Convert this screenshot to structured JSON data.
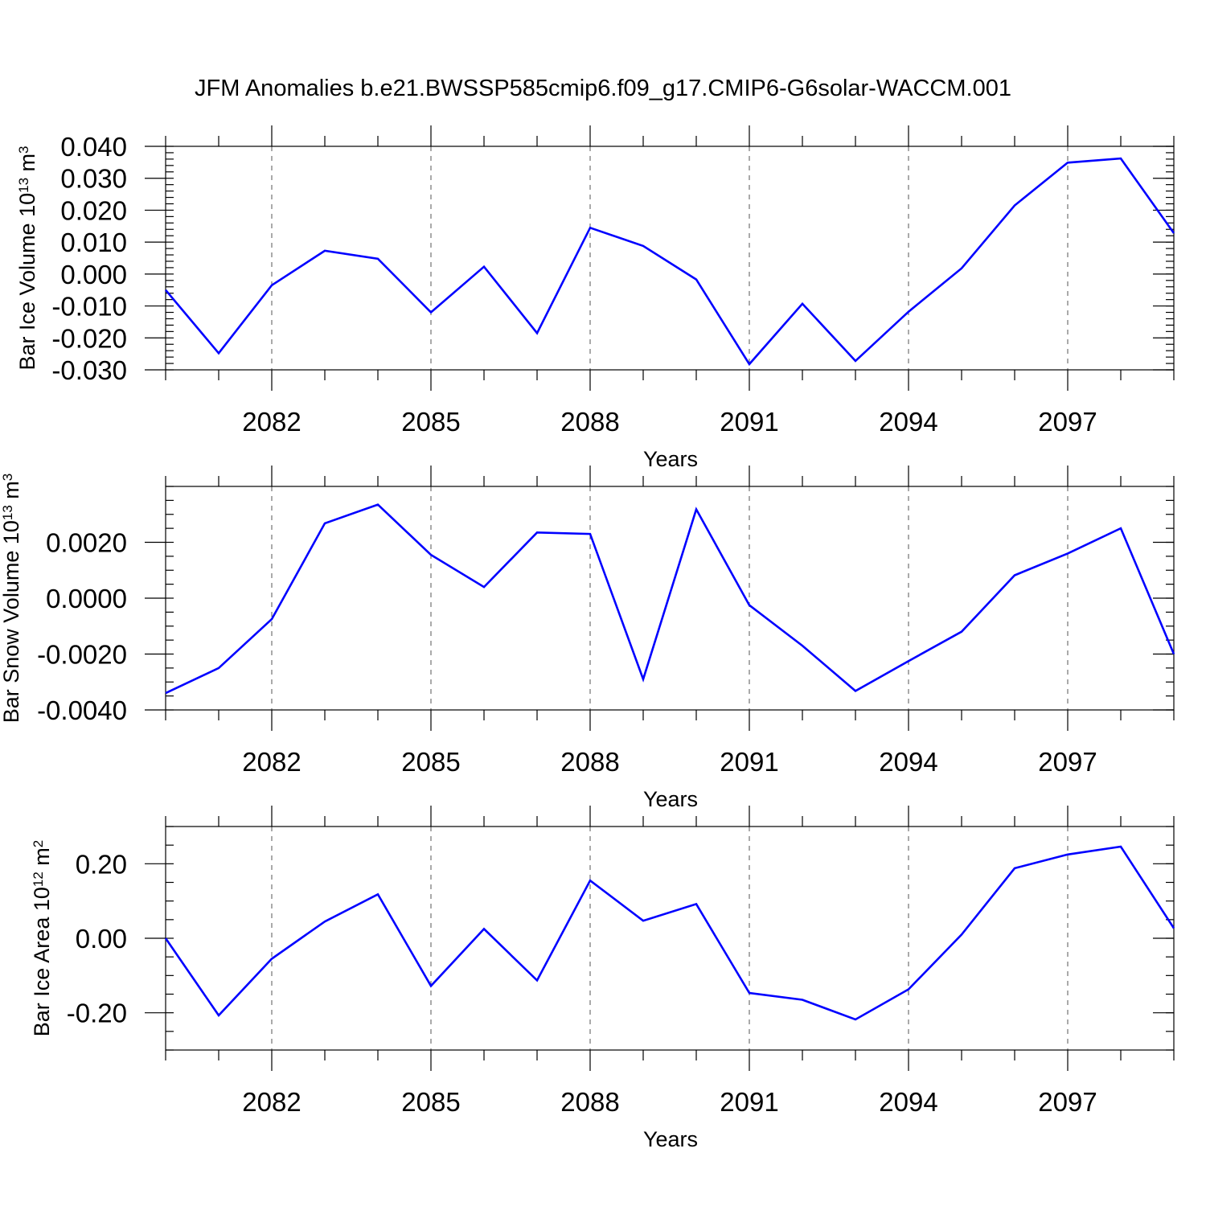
{
  "figure": {
    "title": "JFM Anomalies b.e21.BWSSP585cmip6.f09_g17.CMIP6-G6solar-WACCM.001",
    "line_color": "#0000ff"
  },
  "chart_data": [
    {
      "type": "line",
      "xlabel": "Years",
      "ylabel": {
        "prefix": "Bar Ice Volume 10",
        "exp": "13",
        "unit": " m",
        "unit_exp": "3"
      },
      "xlim": [
        2080,
        2099
      ],
      "ylim": [
        -0.03,
        0.04
      ],
      "xticks": [
        2082,
        2085,
        2088,
        2091,
        2094,
        2097
      ],
      "xtick_labels": [
        "2082",
        "2085",
        "2088",
        "2091",
        "2094",
        "2097"
      ],
      "yticks": [
        0.04,
        0.03,
        0.02,
        0.01,
        0.0,
        -0.01,
        -0.02,
        -0.03
      ],
      "ytick_labels": [
        "0.040",
        "0.030",
        "0.020",
        "0.010",
        "0.000",
        "-0.010",
        "-0.020",
        "-0.030"
      ],
      "y_minor_step": 0.002,
      "grid": "vertical dashed at major x ticks",
      "x": [
        2080,
        2081,
        2082,
        2083,
        2084,
        2085,
        2086,
        2087,
        2088,
        2089,
        2090,
        2091,
        2092,
        2093,
        2094,
        2095,
        2096,
        2097,
        2098,
        2099
      ],
      "values": [
        -0.005,
        -0.0248,
        -0.0035,
        0.0073,
        0.0048,
        -0.012,
        0.0023,
        -0.0185,
        0.0145,
        0.0088,
        -0.0017,
        -0.0282,
        -0.0093,
        -0.0272,
        -0.0118,
        0.0018,
        0.0215,
        0.0349,
        0.0362,
        0.0128
      ]
    },
    {
      "type": "line",
      "xlabel": "Years",
      "ylabel": {
        "prefix": "Bar Snow Volume 10",
        "exp": "13",
        "unit": " m",
        "unit_exp": "3"
      },
      "xlim": [
        2080,
        2099
      ],
      "ylim": [
        -0.004,
        0.004
      ],
      "xticks": [
        2082,
        2085,
        2088,
        2091,
        2094,
        2097
      ],
      "xtick_labels": [
        "2082",
        "2085",
        "2088",
        "2091",
        "2094",
        "2097"
      ],
      "yticks": [
        0.002,
        0.0,
        -0.002,
        -0.004
      ],
      "ytick_labels": [
        "0.0020",
        "0.0000",
        "-0.0020",
        "-0.0040"
      ],
      "y_minor_step": 0.0005,
      "grid": "vertical dashed at major x ticks",
      "x": [
        2080,
        2081,
        2082,
        2083,
        2084,
        2085,
        2086,
        2087,
        2088,
        2089,
        2090,
        2091,
        2092,
        2093,
        2094,
        2095,
        2096,
        2097,
        2098,
        2099
      ],
      "values": [
        -0.0034,
        -0.0025,
        -0.00075,
        0.00268,
        0.00335,
        0.00155,
        0.0004,
        0.00235,
        0.0023,
        -0.0029,
        0.00318,
        -0.00025,
        -0.0017,
        -0.00332,
        -0.00225,
        -0.0012,
        0.00082,
        0.0016,
        0.0025,
        -0.002
      ]
    },
    {
      "type": "line",
      "xlabel": "Years",
      "ylabel": {
        "prefix": "Bar Ice Area 10",
        "exp": "12",
        "unit": " m",
        "unit_exp": "2"
      },
      "xlim": [
        2080,
        2099
      ],
      "ylim": [
        -0.3,
        0.3
      ],
      "xticks": [
        2082,
        2085,
        2088,
        2091,
        2094,
        2097
      ],
      "xtick_labels": [
        "2082",
        "2085",
        "2088",
        "2091",
        "2094",
        "2097"
      ],
      "yticks": [
        0.2,
        0.0,
        -0.2
      ],
      "ytick_labels": [
        "0.20",
        "0.00",
        "-0.20"
      ],
      "y_minor_step": 0.05,
      "grid": "vertical dashed at major x ticks",
      "x": [
        2080,
        2081,
        2082,
        2083,
        2084,
        2085,
        2086,
        2087,
        2088,
        2089,
        2090,
        2091,
        2092,
        2093,
        2094,
        2095,
        2096,
        2097,
        2098,
        2099
      ],
      "values": [
        0.0,
        -0.207,
        -0.055,
        0.045,
        0.118,
        -0.128,
        0.025,
        -0.113,
        0.155,
        0.047,
        0.092,
        -0.147,
        -0.165,
        -0.218,
        -0.137,
        0.01,
        0.188,
        0.225,
        0.246,
        0.027
      ]
    }
  ]
}
